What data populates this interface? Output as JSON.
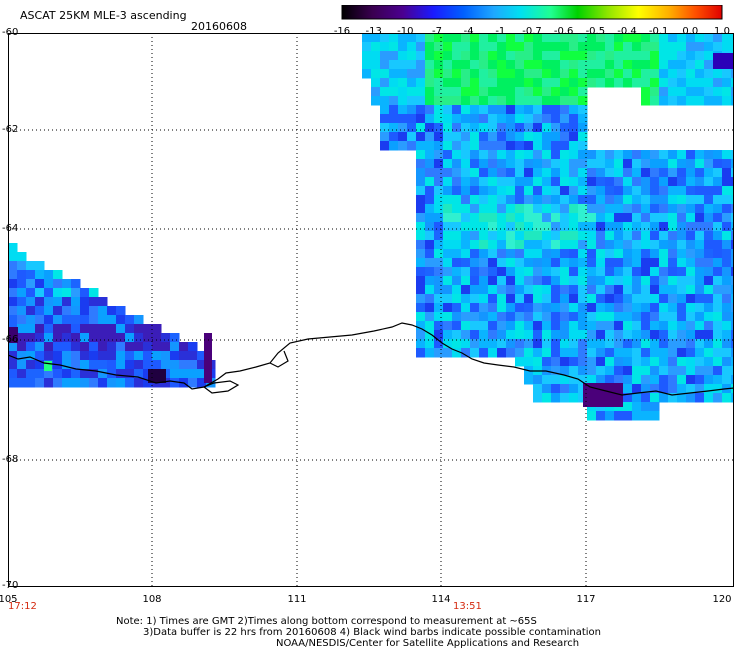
{
  "header": {
    "title": "ASCAT 25KM MLE-3 ascending",
    "date": "20160608"
  },
  "colorbar": {
    "labels": [
      "-16",
      "-13",
      "-10",
      "-7",
      "-4",
      "-1",
      "-0.7",
      "-0.6",
      "-0.5",
      "-0.4",
      "-0.1",
      "0.0",
      "1.0"
    ],
    "colors": [
      "#000000",
      "#4b006e",
      "#1a1aff",
      "#0077ff",
      "#1ebcff",
      "#00e8f0",
      "#20ff80",
      "#00d200",
      "#a0e600",
      "#ffff00",
      "#ffa000",
      "#ff5000",
      "#e00000"
    ]
  },
  "axes": {
    "lat_labels": [
      "-60",
      "-62",
      "-64",
      "-66",
      "-68",
      "-70"
    ],
    "lon_labels": [
      "105",
      "108",
      "111",
      "114",
      "117",
      "120"
    ]
  },
  "times": [
    "17:12",
    "13:51"
  ],
  "notes": [
    "Note: 1) Times are GMT 2)Times along bottom correspond to measurement at ~65S",
    "3)Data buffer is 22 hrs from 20160608 4) Black wind barbs indicate possible contamination",
    "NOAA/NESDIS/Center for Satellite Applications and Research"
  ]
}
